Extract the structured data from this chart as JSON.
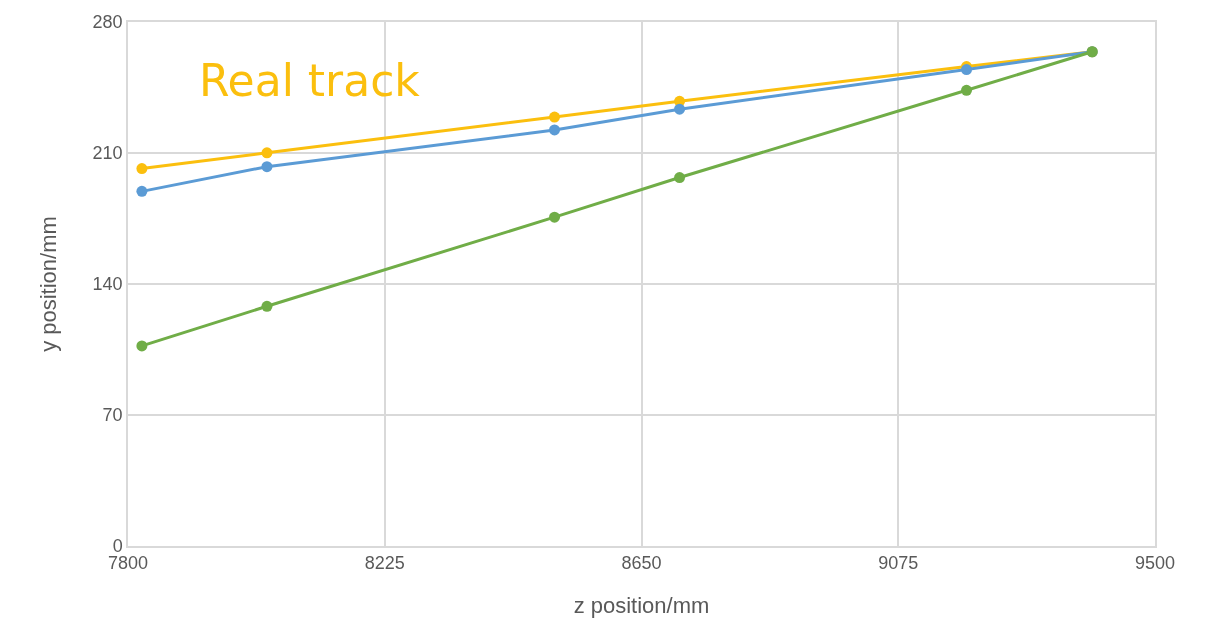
{
  "chart_data": {
    "type": "line",
    "xlabel": "z position/mm",
    "ylabel": "y position/mm",
    "x": [
      7823,
      8030,
      8506,
      8713,
      9188,
      9396
    ],
    "series": [
      {
        "name": "Real track",
        "color": "#fbbf0e",
        "values": [
          201.7,
          210.1,
          229.2,
          237.6,
          256.2,
          264.1
        ]
      },
      {
        "color": "#5b9bd5",
        "values": [
          189.5,
          202.7,
          222.3,
          233.4,
          254.6,
          264.1
        ]
      },
      {
        "color": "#70ad47",
        "values": [
          106.9,
          128.1,
          175.7,
          196.9,
          243.5,
          264.1
        ]
      }
    ],
    "xlim": [
      7800,
      9500
    ],
    "xticks": [
      7800,
      8225,
      8650,
      9075,
      9500
    ],
    "ylim": [
      0,
      280
    ],
    "yticks": [
      0,
      70,
      140,
      210,
      280
    ],
    "grid": true,
    "legend": false,
    "marker": "circle",
    "line_style": "solid"
  }
}
